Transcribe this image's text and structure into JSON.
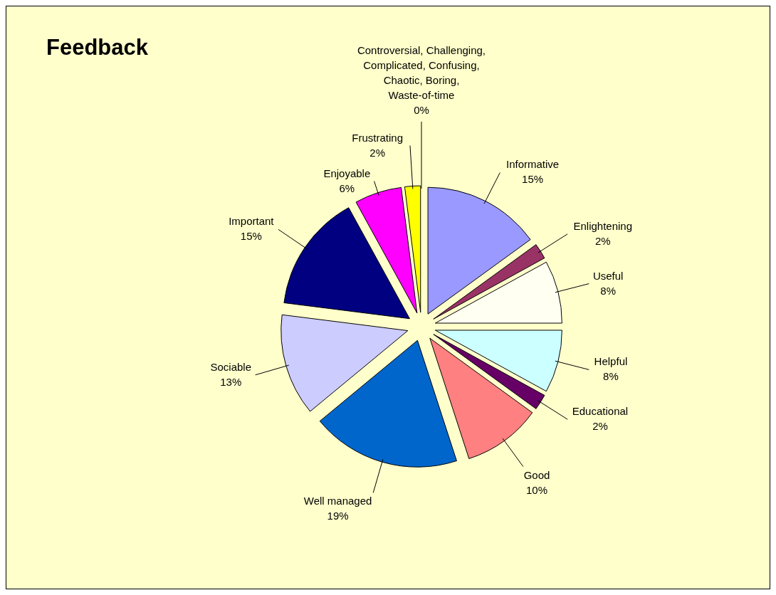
{
  "chart_data": {
    "type": "pie",
    "title": "Feedback",
    "categories": [
      "Informative",
      "Enlightening",
      "Useful",
      "Helpful",
      "Educational",
      "Good",
      "Well managed",
      "Sociable",
      "Important",
      "Enjoyable",
      "Frustrating",
      "Controversial, Challenging, Complicated, Confusing, Chaotic, Boring, Waste-of-time"
    ],
    "values": [
      15,
      2,
      8,
      8,
      2,
      10,
      19,
      13,
      15,
      6,
      2,
      0
    ],
    "colors": [
      "#9999ff",
      "#993366",
      "#fffff2",
      "#ccffff",
      "#660066",
      "#ff8080",
      "#0066cc",
      "#ccccff",
      "#000080",
      "#ff00ff",
      "#ffff00",
      "#800000"
    ],
    "value_labels": [
      "15%",
      "2%",
      "8%",
      "8%",
      "2%",
      "10%",
      "19%",
      "13%",
      "15%",
      "6%",
      "2%",
      "0%"
    ],
    "legend": false
  }
}
